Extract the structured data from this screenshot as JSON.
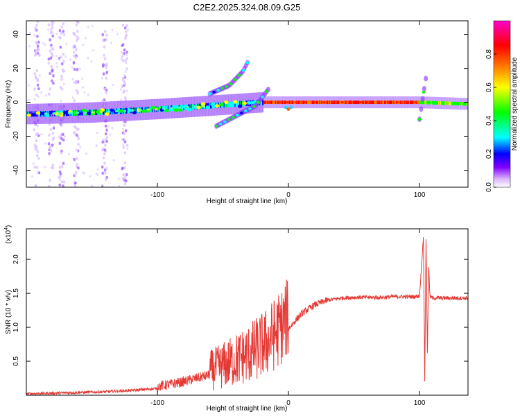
{
  "chart_data": [
    {
      "type": "heatmap",
      "title": "C2E2.2025.324.08.09.G25",
      "xlabel": "Height of straight line (km)",
      "ylabel": "Frequency (Hz)",
      "xlim": [
        -200,
        137
      ],
      "ylim": [
        -50,
        48
      ],
      "xticks": [
        -100,
        0,
        100
      ],
      "yticks": [
        -40,
        -20,
        0,
        20,
        40
      ],
      "colorbar": {
        "label": "Normalized spectral amplitude",
        "range": [
          0,
          1
        ],
        "ticks": [
          0.0,
          0.2,
          0.4,
          0.6,
          0.8
        ],
        "tick_labels": [
          "0.0",
          "0.2",
          "0.4",
          "0.6",
          "0.8"
        ],
        "colors": [
          "#ffffff",
          "#d9b3ff",
          "#8000ff",
          "#0000ff",
          "#00ffff",
          "#00ff00",
          "#ffff00",
          "#ff8000",
          "#ff0000",
          "#ff00cc"
        ]
      },
      "features": [
        {
          "name": "main track",
          "x": [
            -200,
            -150,
            -100,
            -60,
            -20,
            0,
            50,
            100,
            137
          ],
          "y": [
            -7,
            -6,
            -4,
            -2,
            0,
            0,
            0,
            0,
            -1
          ]
        },
        {
          "name": "upper branch",
          "x": [
            -60,
            -45,
            -35,
            -30
          ],
          "y": [
            5,
            10,
            18,
            25
          ]
        },
        {
          "name": "lower branch",
          "x": [
            -55,
            -45,
            -35,
            -25,
            -15
          ],
          "y": [
            -14,
            -10,
            -6,
            -2,
            8
          ]
        },
        {
          "name": "spike at 100 km",
          "x": [
            100,
            103,
            105
          ],
          "y": [
            -10,
            5,
            15
          ]
        }
      ]
    },
    {
      "type": "line",
      "title": "",
      "xlabel": "Height of straight line (km)",
      "ylabel": "SNR (10 * v/v)",
      "multiplier": "(x10",
      "multiplier_exp": "4",
      "xlim": [
        -200,
        137
      ],
      "ylim": [
        0,
        2.45
      ],
      "xticks": [
        -100,
        0,
        100
      ],
      "yticks": [
        0.5,
        1.0,
        1.5,
        2.0
      ],
      "ytick_labels": [
        "0.5",
        "1.0",
        "1.5",
        "2.0"
      ],
      "color": "#e53935",
      "series": [
        {
          "name": "SNR",
          "x": [
            -200,
            -180,
            -160,
            -140,
            -120,
            -100,
            -90,
            -80,
            -70,
            -60,
            -50,
            -40,
            -30,
            -20,
            -15,
            -10,
            -5,
            0,
            10,
            20,
            30,
            40,
            50,
            60,
            70,
            80,
            90,
            95,
            100,
            103,
            104,
            105,
            106,
            107,
            108,
            110,
            115,
            120,
            137
          ],
          "values": [
            0.02,
            0.03,
            0.04,
            0.05,
            0.07,
            0.1,
            0.13,
            0.17,
            0.22,
            0.27,
            0.33,
            0.4,
            0.48,
            0.58,
            0.65,
            0.75,
            0.85,
            0.98,
            1.2,
            1.33,
            1.4,
            1.43,
            1.44,
            1.44,
            1.44,
            1.45,
            1.45,
            1.45,
            1.46,
            2.35,
            0.22,
            2.3,
            0.6,
            1.9,
            1.45,
            1.43,
            1.43,
            1.43,
            1.43
          ]
        }
      ]
    }
  ]
}
